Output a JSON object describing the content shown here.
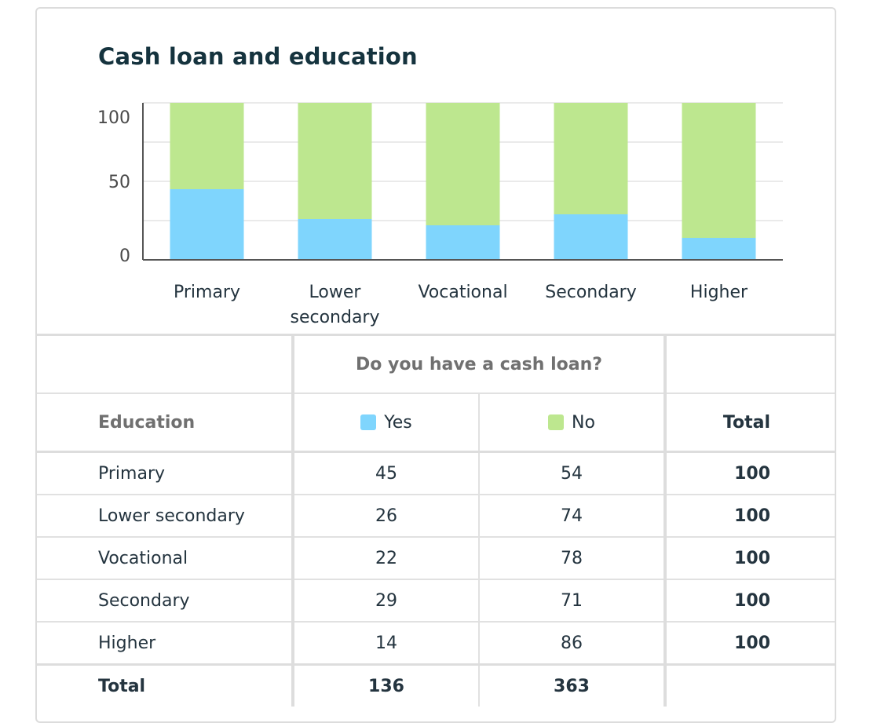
{
  "chart_data": {
    "type": "bar",
    "stacked": true,
    "title": "Cash loan and education",
    "categories": [
      "Primary",
      "Lower secondary",
      "Vocational",
      "Secondary",
      "Higher"
    ],
    "category_lines": [
      [
        "Primary"
      ],
      [
        "Lower",
        "secondary"
      ],
      [
        "Vocational"
      ],
      [
        "Secondary"
      ],
      [
        "Higher"
      ]
    ],
    "series": [
      {
        "name": "Yes",
        "color": "#7fd5fd",
        "values": [
          45,
          26,
          22,
          29,
          14
        ]
      },
      {
        "name": "No",
        "color": "#bde78f",
        "values": [
          54,
          74,
          78,
          71,
          86
        ]
      }
    ],
    "ylim": [
      0,
      100
    ],
    "yticks": [
      0,
      50,
      100
    ],
    "grid": true
  },
  "table": {
    "question": "Do you have a cash loan?",
    "row_header": "Education",
    "yes_label": "Yes",
    "no_label": "No",
    "total_label": "Total",
    "rows": [
      {
        "label": "Primary",
        "yes": "45",
        "no": "54",
        "total": "100"
      },
      {
        "label": "Lower secondary",
        "yes": "26",
        "no": "74",
        "total": "100"
      },
      {
        "label": "Vocational",
        "yes": "22",
        "no": "78",
        "total": "100"
      },
      {
        "label": "Secondary",
        "yes": "29",
        "no": "71",
        "total": "100"
      },
      {
        "label": "Higher",
        "yes": "14",
        "no": "86",
        "total": "100"
      }
    ],
    "totals": {
      "label": "Total",
      "yes": "136",
      "no": "363",
      "total": ""
    }
  }
}
